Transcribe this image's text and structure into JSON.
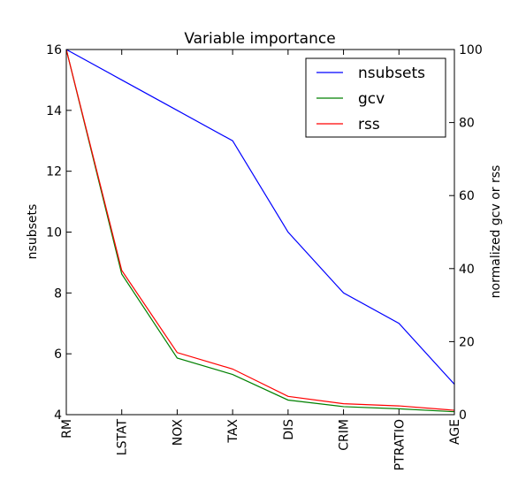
{
  "chart_data": {
    "type": "line",
    "title": "Variable importance",
    "categories": [
      "RM",
      "LSTAT",
      "NOX",
      "TAX",
      "DIS",
      "CRIM",
      "PTRATIO",
      "AGE"
    ],
    "left_axis": {
      "label": "nsubsets",
      "range": [
        4,
        16
      ],
      "ticks": [
        "4",
        "6",
        "8",
        "10",
        "12",
        "14",
        "16"
      ]
    },
    "right_axis": {
      "label": "normalized gcv or rss",
      "range": [
        0,
        100
      ],
      "ticks": [
        "0",
        "20",
        "40",
        "60",
        "80",
        "100"
      ]
    },
    "legend_position": "top-right",
    "grid": false,
    "series": [
      {
        "name": "nsubsets",
        "axis": "left",
        "color": "#0000ff",
        "values": [
          16,
          15,
          14,
          13,
          10,
          8,
          7,
          5
        ]
      },
      {
        "name": "gcv",
        "axis": "right",
        "color": "#008000",
        "values": [
          100,
          38.5,
          15.5,
          11,
          4,
          2.2,
          1.6,
          0.8
        ]
      },
      {
        "name": "rss",
        "axis": "right",
        "color": "#ff0000",
        "values": [
          100,
          39.5,
          17,
          12.5,
          5,
          3,
          2.4,
          1.2
        ]
      }
    ]
  }
}
